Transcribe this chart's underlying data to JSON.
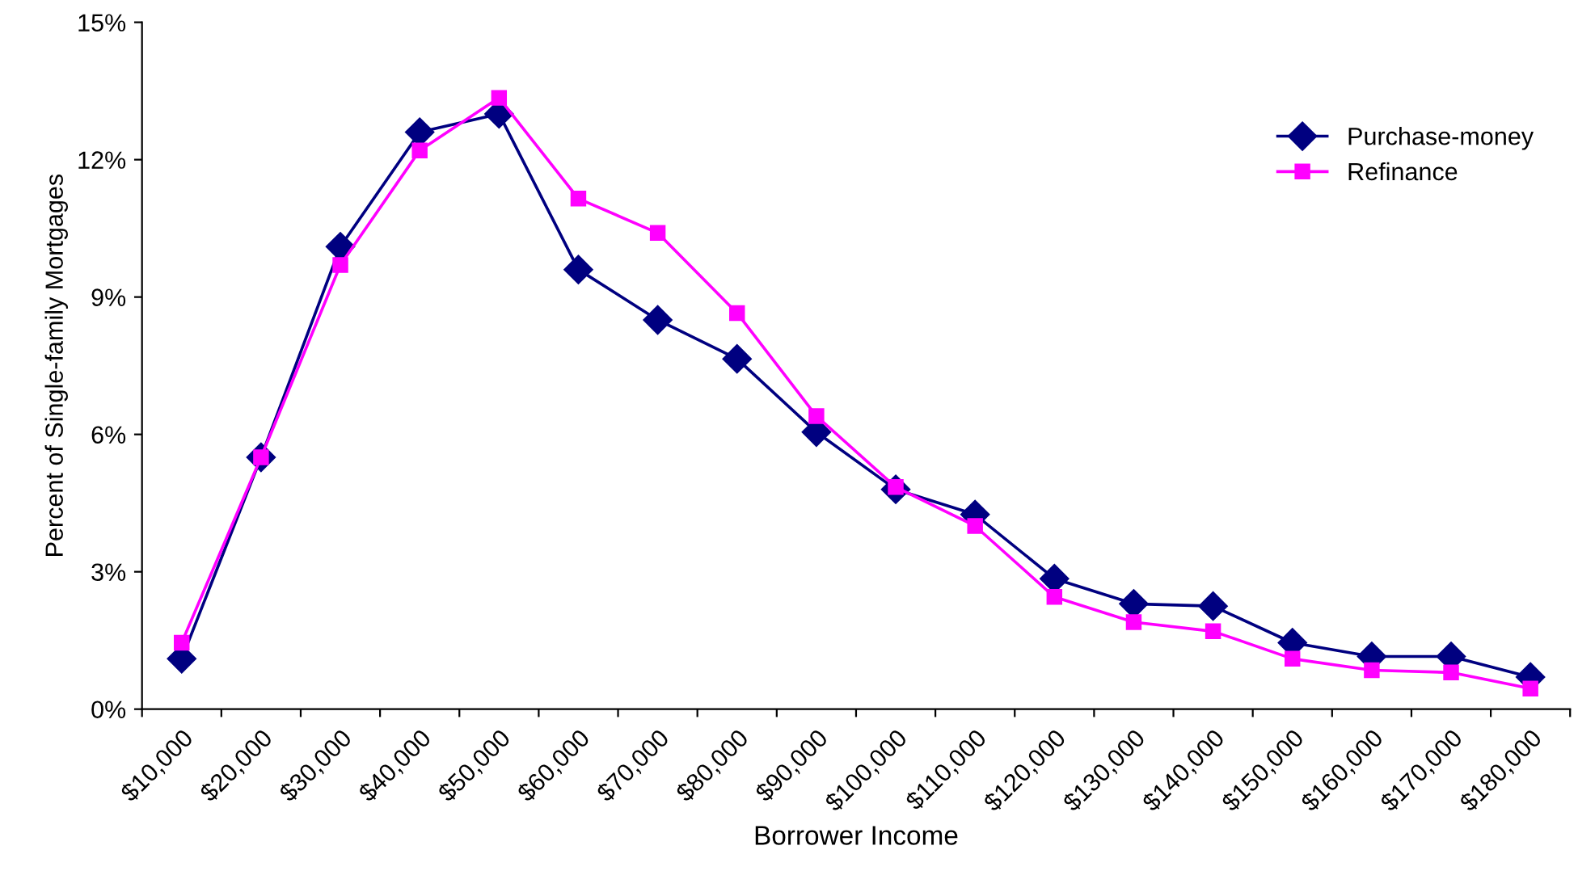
{
  "chart_data": {
    "type": "line",
    "xlabel": "Borrower Income",
    "ylabel": "Percent of Single-family Mortgages",
    "categories": [
      "$10,000",
      "$20,000",
      "$30,000",
      "$40,000",
      "$50,000",
      "$60,000",
      "$70,000",
      "$80,000",
      "$90,000",
      "$100,000",
      "$110,000",
      "$120,000",
      "$130,000",
      "$140,000",
      "$150,000",
      "$160,000",
      "$170,000",
      "$180,000"
    ],
    "series": [
      {
        "name": "Purchase-money",
        "color": "#000080",
        "marker": "diamond",
        "values": [
          1.1,
          5.5,
          10.1,
          12.6,
          13.0,
          9.6,
          8.5,
          7.65,
          6.05,
          4.8,
          4.25,
          2.85,
          2.3,
          2.25,
          1.45,
          1.15,
          1.15,
          0.7
        ]
      },
      {
        "name": "Refinance",
        "color": "#ff00ff",
        "marker": "square",
        "values": [
          1.45,
          5.5,
          9.7,
          12.2,
          13.35,
          11.15,
          10.4,
          8.65,
          6.4,
          4.85,
          4.0,
          2.45,
          1.9,
          1.7,
          1.1,
          0.85,
          0.8,
          0.45
        ]
      }
    ],
    "ylim": [
      0,
      15
    ],
    "yticks": [
      {
        "value": 0,
        "label": "0%"
      },
      {
        "value": 3,
        "label": "3%"
      },
      {
        "value": 6,
        "label": "6%"
      },
      {
        "value": 9,
        "label": "9%"
      },
      {
        "value": 12,
        "label": "12%"
      },
      {
        "value": 15,
        "label": "15%"
      }
    ],
    "grid": false,
    "legend": "top right",
    "line_style": "solid"
  }
}
